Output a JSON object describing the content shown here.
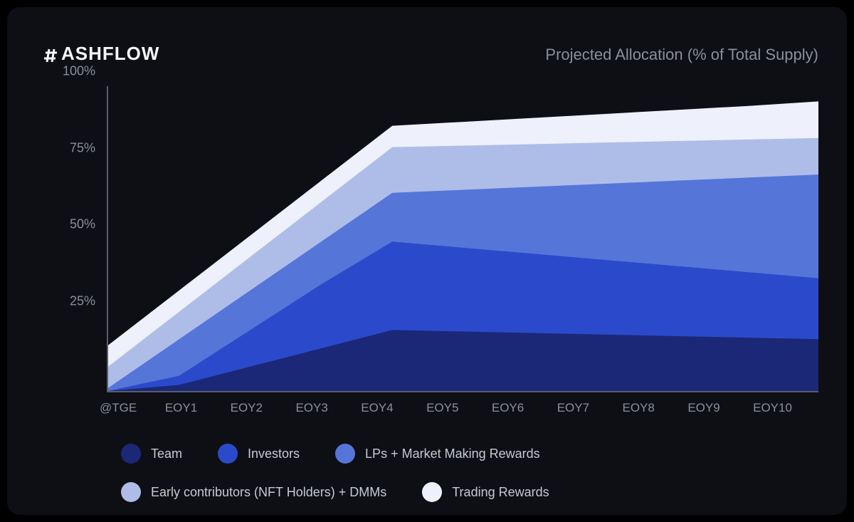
{
  "brand": {
    "name": "ASHFLOW",
    "logo_color": "#f5f5f7"
  },
  "title": "Projected Allocation (% of Total Supply)",
  "card_background": "#0e0f14",
  "axis_color": "#5a5e68",
  "label_color": "#8a8f9a",
  "legend_label_color": "#c6cad2",
  "chart": {
    "type": "stacked-area",
    "ylim": [
      0,
      100
    ],
    "ytick_step": 25,
    "yticks": [
      "25%",
      "50%",
      "75%",
      "100%"
    ],
    "xlabels": [
      "@TGE",
      "EOY1",
      "EOY2",
      "EOY3",
      "EOY4",
      "EOY5",
      "EOY6",
      "EOY7",
      "EOY8",
      "EOY9",
      "EOY10"
    ],
    "series": [
      {
        "name": "Team",
        "color": "#1b2877",
        "values": [
          0,
          2,
          8,
          14,
          20,
          19.5,
          19,
          18.5,
          18,
          17.5,
          17
        ]
      },
      {
        "name": "Investors",
        "color": "#2b4acb",
        "values": [
          0,
          5,
          20,
          35,
          49,
          47,
          45,
          43,
          41,
          39,
          37
        ]
      },
      {
        "name": "LPs + Market Making Rewards",
        "color": "#5675d8",
        "values": [
          1,
          17,
          33,
          49,
          65,
          66,
          67,
          68,
          69,
          70,
          71
        ]
      },
      {
        "name": "Early contributors (NFT Holders) + DMMs",
        "color": "#aebde8",
        "values": [
          8,
          26,
          44,
          62,
          80,
          80.5,
          81,
          81.5,
          82,
          82.5,
          83
        ]
      },
      {
        "name": "Trading Rewards",
        "color": "#eef1fb",
        "values": [
          15,
          33,
          51,
          69,
          87,
          88.3,
          89.6,
          90.9,
          92.2,
          93.5,
          95
        ]
      }
    ]
  },
  "fonts": {
    "logo_fontsize": 26,
    "title_fontsize": 22,
    "axis_label_fontsize": 18,
    "legend_fontsize": 18
  }
}
